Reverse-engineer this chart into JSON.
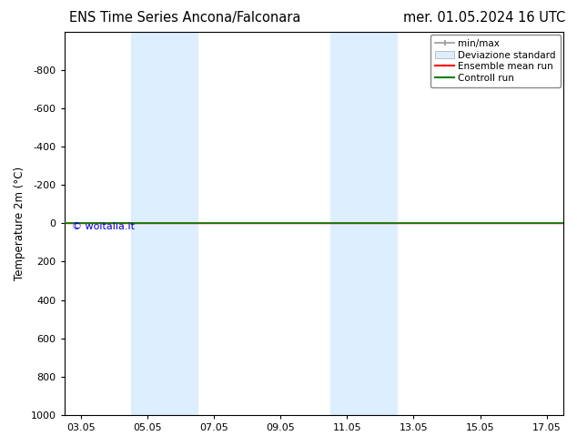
{
  "title_left": "ENS Time Series Ancona/Falconara",
  "title_right": "mer. 01.05.2024 16 UTC",
  "ylabel": "Temperature 2m (°C)",
  "watermark": "© woitalia.it",
  "ylim_bottom": 1000,
  "ylim_top": -1000,
  "yticks": [
    -800,
    -600,
    -400,
    -200,
    0,
    200,
    400,
    600,
    800,
    1000
  ],
  "xtick_labels": [
    "03.05",
    "05.05",
    "07.05",
    "09.05",
    "11.05",
    "13.05",
    "15.05",
    "17.05"
  ],
  "xtick_positions": [
    0,
    2,
    4,
    6,
    8,
    10,
    12,
    14
  ],
  "xlim": [
    -0.5,
    14.5
  ],
  "shaded_bands": [
    {
      "xmin": 1.5,
      "xmax": 3.5,
      "color": "#ddeeff"
    },
    {
      "xmin": 7.5,
      "xmax": 9.5,
      "color": "#ddeeff"
    }
  ],
  "hline_y": 0,
  "hline_color_ensemble": "#ff0000",
  "hline_color_control": "#008000",
  "legend_labels": [
    "min/max",
    "Deviazione standard",
    "Ensemble mean run",
    "Controll run"
  ],
  "bg_color": "#ffffff",
  "title_fontsize": 10.5,
  "axis_fontsize": 8.5,
  "tick_fontsize": 8,
  "legend_fontsize": 7.5,
  "watermark_color": "#0000cc",
  "watermark_fontsize": 8
}
